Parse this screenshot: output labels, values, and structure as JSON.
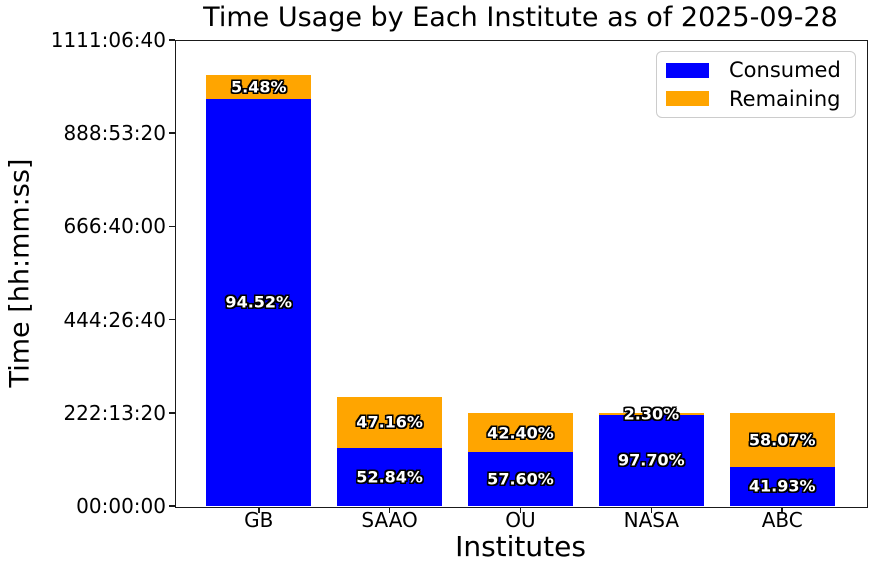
{
  "chart_data": {
    "type": "bar",
    "stacked": true,
    "title": "Time Usage by Each Institute as of 2025-09-28",
    "xlabel": "Institutes",
    "ylabel": "Time [hh:mm:ss]",
    "categories": [
      "GB",
      "SAAO",
      "OU",
      "NASA",
      "ABC"
    ],
    "series": [
      {
        "name": "Consumed",
        "color": "#0000ff",
        "values_hours": [
          970.6,
          137.9,
          128.0,
          217.1,
          93.2
        ],
        "percent_labels": [
          "94.52%",
          "52.84%",
          "57.60%",
          "97.70%",
          "41.93%"
        ]
      },
      {
        "name": "Remaining",
        "color": "#ffa500",
        "values_hours": [
          56.3,
          123.1,
          94.2,
          5.1,
          129.0
        ],
        "percent_labels": [
          "5.48%",
          "47.16%",
          "42.40%",
          "2.30%",
          "58.07%"
        ]
      }
    ],
    "totals_hours": [
      1026.9,
      261.0,
      222.2,
      222.2,
      222.2
    ],
    "y_axis": {
      "min_hours": 0,
      "max_hours": 1111.1111,
      "tick_labels": [
        "00:00:00",
        "222:13:20",
        "444:26:40",
        "666:40:00",
        "888:53:20",
        "1111:06:40"
      ]
    },
    "legend": {
      "position": "upper right",
      "entries": [
        {
          "label": "Consumed",
          "color": "#0000ff"
        },
        {
          "label": "Remaining",
          "color": "#ffa500"
        }
      ]
    },
    "grid": false
  },
  "style": {
    "bar_label_text_color": "#ffffff",
    "bar_label_outline_color": "#000000",
    "axis_color": "#1a1a1a",
    "background_color": "#ffffff"
  }
}
